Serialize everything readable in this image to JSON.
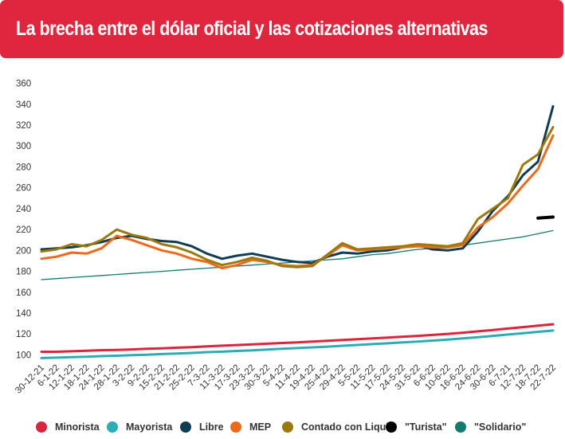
{
  "header": {
    "title": "La brecha entre el dólar oficial y las cotizaciones alternativas"
  },
  "chart_data": {
    "type": "line",
    "title": "La brecha entre el dólar oficial y las cotizaciones alternativas",
    "xlabel": "",
    "ylabel": "",
    "ylim": [
      95,
      365
    ],
    "yticks": [
      100,
      120,
      140,
      160,
      180,
      200,
      220,
      240,
      260,
      280,
      300,
      320,
      340,
      360
    ],
    "grid": false,
    "legend_position": "bottom",
    "categories": [
      "30-12-21",
      "6-1-22",
      "12-1-22",
      "18-1-22",
      "24-1-22",
      "28-1-22",
      "3-2-22",
      "9-2-22",
      "15-2-22",
      "21-2-22",
      "25-2-22",
      "7-3-22",
      "11-3-22",
      "17-3-22",
      "23-3-22",
      "30-3-22",
      "5-4-22",
      "11-4-22",
      "19-4-22",
      "25-4-22",
      "29-4-22",
      "5-5-22",
      "11-5-22",
      "17-5-22",
      "24-5-22",
      "31-5-22",
      "6-6-22",
      "10-6-22",
      "16-6-22",
      "24-6-22",
      "30-6-22",
      "6-7-21",
      "12-7-22",
      "18-7-22",
      "22-7-22"
    ],
    "series": [
      {
        "name": "Minorista",
        "color": "#d7263d",
        "values": [
          103,
          103,
          103.5,
          104,
          104.5,
          104.8,
          105.2,
          105.8,
          106.3,
          106.9,
          107.4,
          108.2,
          108.8,
          109.4,
          110,
          110.7,
          111.4,
          112,
          112.8,
          113.5,
          114.2,
          115,
          115.8,
          116.6,
          117.4,
          118.2,
          119.1,
          120.1,
          121.2,
          122.5,
          123.8,
          125.2,
          126.6,
          128,
          129.3
        ]
      },
      {
        "name": "Mayorista",
        "color": "#2cadb6",
        "values": [
          97,
          97.4,
          97.8,
          98.3,
          98.8,
          99.2,
          99.7,
          100.2,
          100.8,
          101.3,
          101.9,
          102.6,
          103.1,
          103.8,
          104.4,
          105.1,
          105.8,
          106.5,
          107.2,
          107.9,
          108.7,
          109.5,
          110.3,
          111.1,
          111.9,
          112.8,
          113.7,
          114.7,
          115.8,
          117,
          118.2,
          119.5,
          120.8,
          122.1,
          123.3
        ]
      },
      {
        "name": "Libre",
        "color": "#0f3d52",
        "values": [
          201,
          202,
          203,
          205,
          208,
          212,
          214,
          211,
          209,
          208,
          204,
          197,
          192,
          195,
          197,
          194,
          191,
          189,
          188,
          194,
          198,
          197,
          199,
          200,
          203,
          205,
          201,
          200,
          202,
          218,
          238,
          252,
          272,
          285,
          338
        ]
      },
      {
        "name": "MEP",
        "color": "#ee6a1a",
        "values": [
          192,
          194,
          198,
          197,
          202,
          214,
          210,
          205,
          200,
          197,
          192,
          189,
          183,
          186,
          191,
          189,
          186,
          185,
          186,
          195,
          205,
          200,
          201,
          202,
          203,
          204,
          203,
          203,
          205,
          222,
          232,
          245,
          262,
          278,
          310
        ]
      },
      {
        "name": "Contado con Liqui",
        "color": "#9a7a0c",
        "values": [
          199,
          201,
          206,
          204,
          210,
          220,
          215,
          212,
          206,
          203,
          198,
          191,
          186,
          189,
          193,
          190,
          185,
          184,
          185,
          196,
          207,
          201,
          202,
          203,
          204,
          206,
          205,
          204,
          207,
          230,
          240,
          250,
          282,
          292,
          318
        ]
      },
      {
        "name": "\"Turista\"",
        "color": "#000000",
        "values": [
          null,
          null,
          null,
          null,
          null,
          null,
          null,
          null,
          null,
          null,
          null,
          null,
          null,
          null,
          null,
          null,
          null,
          null,
          null,
          null,
          null,
          null,
          null,
          null,
          null,
          null,
          null,
          null,
          null,
          null,
          null,
          null,
          null,
          231,
          232
        ]
      },
      {
        "name": "\"Solidario\"",
        "color": "#137a6e",
        "values": [
          172,
          173,
          174,
          175,
          176,
          177,
          178,
          179,
          180,
          181,
          182,
          183,
          184,
          185,
          186,
          187,
          188,
          189,
          190,
          191,
          192,
          194,
          196,
          197,
          199,
          201,
          202,
          203,
          205,
          207,
          209,
          211,
          213,
          216,
          219
        ]
      }
    ]
  }
}
